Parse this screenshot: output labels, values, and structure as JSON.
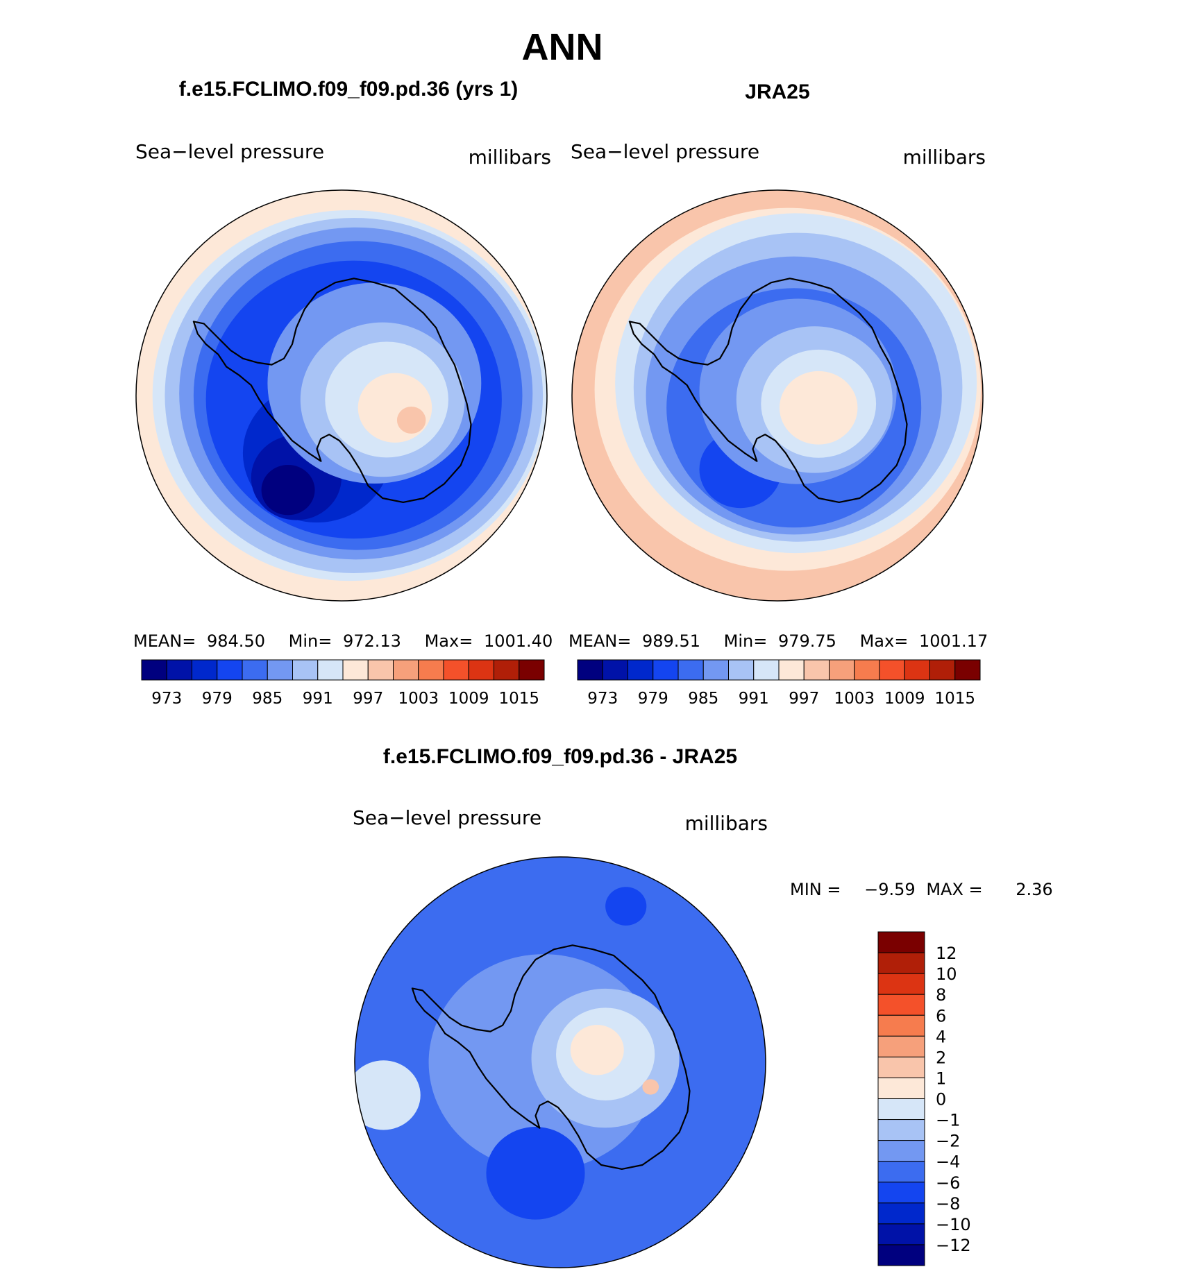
{
  "chart_data": {
    "type": "heatmap",
    "title": "ANN",
    "panels": [
      {
        "id": "model",
        "title": "f.e15.FCLIMO.f09_f09.pd.36 (yrs 1)",
        "left_label": "Sea−level pressure",
        "right_label": "millibars",
        "stats": {
          "mean_label": "MEAN=",
          "mean": "984.50",
          "min_label": "Min=",
          "min": "972.13",
          "max_label": "Max=",
          "max": "1001.40"
        },
        "colorbar": {
          "colors": [
            "#00007f",
            "#0012a8",
            "#0028cc",
            "#1445f0",
            "#3c6cf0",
            "#7398f2",
            "#a8c3f5",
            "#d6e6f8",
            "#fde8d8",
            "#f9c5ab",
            "#f6a07b",
            "#f67c4e",
            "#f4512a",
            "#dc3413",
            "#b01f08",
            "#7a0000"
          ],
          "tick_labels": [
            "973",
            "979",
            "985",
            "991",
            "997",
            "1003",
            "1009",
            "1015"
          ]
        },
        "contours": [
          {
            "level": "995",
            "color": "#fde8d8",
            "cx": 0.0,
            "cy": 0.0,
            "r": 1.0
          },
          {
            "level": "993",
            "color": "#d6e6f8",
            "cx": 0.04,
            "cy": 0.0,
            "r": 0.96
          },
          {
            "level": "991",
            "color": "#a8c3f5",
            "cx": 0.06,
            "cy": 0.0,
            "r": 0.92
          },
          {
            "level": "989",
            "color": "#7398f2",
            "cx": 0.07,
            "cy": -0.01,
            "r": 0.86
          },
          {
            "level": "987",
            "color": "#3c6cf0",
            "cx": 0.08,
            "cy": 0.0,
            "r": 0.8
          },
          {
            "level": "985",
            "color": "#1445f0",
            "cx": 0.06,
            "cy": 0.02,
            "r": 0.72
          },
          {
            "level": "981",
            "color": "#0028cc",
            "cx": -0.12,
            "cy": 0.28,
            "r": 0.36
          },
          {
            "level": "975",
            "color": "#0012a8",
            "cx": -0.22,
            "cy": 0.4,
            "r": 0.22
          },
          {
            "level": "972",
            "color": "#00007f",
            "cx": -0.26,
            "cy": 0.46,
            "r": 0.13
          },
          {
            "level": "989",
            "color": "#7398f2",
            "cx": 0.16,
            "cy": -0.06,
            "r": 0.52
          },
          {
            "level": "991",
            "color": "#a8c3f5",
            "cx": 0.2,
            "cy": 0.02,
            "r": 0.4
          },
          {
            "level": "993",
            "color": "#d6e6f8",
            "cx": 0.22,
            "cy": 0.02,
            "r": 0.3
          },
          {
            "level": "997",
            "color": "#fde8d8",
            "cx": 0.26,
            "cy": 0.06,
            "r": 0.18
          },
          {
            "level": "999",
            "color": "#f9c5ab",
            "cx": 0.34,
            "cy": 0.12,
            "r": 0.07
          }
        ]
      },
      {
        "id": "obs",
        "title": "JRA25",
        "left_label": "Sea−level pressure",
        "right_label": "millibars",
        "stats": {
          "mean_label": "MEAN=",
          "mean": "989.51",
          "min_label": "Min=",
          "min": "979.75",
          "max_label": "Max=",
          "max": "1001.17"
        },
        "colorbar": {
          "colors": [
            "#00007f",
            "#0012a8",
            "#0028cc",
            "#1445f0",
            "#3c6cf0",
            "#7398f2",
            "#a8c3f5",
            "#d6e6f8",
            "#fde8d8",
            "#f9c5ab",
            "#f6a07b",
            "#f67c4e",
            "#f4512a",
            "#dc3413",
            "#b01f08",
            "#7a0000"
          ],
          "tick_labels": [
            "973",
            "979",
            "985",
            "991",
            "997",
            "1003",
            "1009",
            "1015"
          ]
        },
        "contours": [
          {
            "level": "999",
            "color": "#f9c5ab",
            "cx": 0.0,
            "cy": 0.0,
            "r": 1.0
          },
          {
            "level": "997",
            "color": "#fde8d8",
            "cx": 0.05,
            "cy": -0.03,
            "r": 0.94
          },
          {
            "level": "993",
            "color": "#d6e6f8",
            "cx": 0.09,
            "cy": -0.06,
            "r": 0.88
          },
          {
            "level": "991",
            "color": "#a8c3f5",
            "cx": 0.1,
            "cy": -0.04,
            "r": 0.8
          },
          {
            "level": "989",
            "color": "#7398f2",
            "cx": 0.08,
            "cy": 0.0,
            "r": 0.72
          },
          {
            "level": "985",
            "color": "#3c6cf0",
            "cx": 0.08,
            "cy": 0.06,
            "r": 0.62
          },
          {
            "level": "981",
            "color": "#1445f0",
            "cx": -0.18,
            "cy": 0.36,
            "r": 0.2
          },
          {
            "level": "989",
            "color": "#7398f2",
            "cx": 0.1,
            "cy": -0.02,
            "r": 0.48
          },
          {
            "level": "991",
            "color": "#a8c3f5",
            "cx": 0.18,
            "cy": 0.02,
            "r": 0.38
          },
          {
            "level": "993",
            "color": "#d6e6f8",
            "cx": 0.2,
            "cy": 0.04,
            "r": 0.28
          },
          {
            "level": "997",
            "color": "#fde8d8",
            "cx": 0.2,
            "cy": 0.06,
            "r": 0.19
          }
        ]
      },
      {
        "id": "diff",
        "title": "f.e15.FCLIMO.f09_f09.pd.36 - JRA25",
        "left_label": "Sea−level pressure",
        "right_label": "millibars",
        "stats": {
          "min_label": "MIN =",
          "min": "−9.59",
          "max_label": "MAX =",
          "max": "2.36"
        },
        "colorbar": {
          "colors": [
            "#7a0000",
            "#b01f08",
            "#dc3413",
            "#f4512a",
            "#f67c4e",
            "#f6a07b",
            "#f9c5ab",
            "#fde8d8",
            "#d6e6f8",
            "#a8c3f5",
            "#7398f2",
            "#3c6cf0",
            "#1445f0",
            "#0028cc",
            "#0012a8",
            "#00007f"
          ],
          "tick_labels": [
            "12",
            "10",
            "8",
            "6",
            "4",
            "2",
            "1",
            "0",
            "−1",
            "−2",
            "−4",
            "−6",
            "−8",
            "−10",
            "−12"
          ]
        },
        "contours": [
          {
            "level": "-6",
            "color": "#3c6cf0",
            "cx": 0.0,
            "cy": 0.0,
            "r": 1.0
          },
          {
            "level": "-2",
            "color": "#d6e6f8",
            "cx": -0.86,
            "cy": 0.16,
            "r": 0.18
          },
          {
            "level": "-4",
            "color": "#7398f2",
            "cx": -0.08,
            "cy": 0.0,
            "r": 0.56
          },
          {
            "level": "-8",
            "color": "#1445f0",
            "cx": -0.12,
            "cy": 0.54,
            "r": 0.24
          },
          {
            "level": "-8",
            "color": "#1445f0",
            "cx": 0.32,
            "cy": -0.76,
            "r": 0.1
          },
          {
            "level": "-2",
            "color": "#a8c3f5",
            "cx": 0.22,
            "cy": -0.02,
            "r": 0.36
          },
          {
            "level": "-1",
            "color": "#d6e6f8",
            "cx": 0.22,
            "cy": -0.04,
            "r": 0.24
          },
          {
            "level": "1",
            "color": "#fde8d8",
            "cx": 0.18,
            "cy": -0.06,
            "r": 0.13
          },
          {
            "level": "2",
            "color": "#f9c5ab",
            "cx": 0.44,
            "cy": 0.12,
            "r": 0.04
          }
        ]
      }
    ]
  }
}
